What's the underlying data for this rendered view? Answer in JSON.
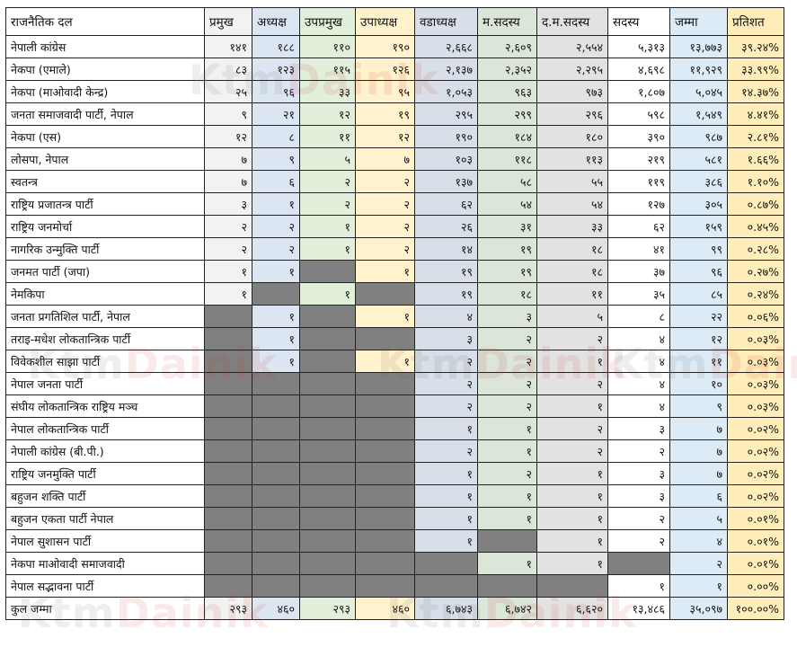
{
  "headers": [
    "राजनैतिक दल",
    "प्रमुख",
    "अध्यक्ष",
    "उपप्रमुख",
    "उपाध्यक्ष",
    "वडाध्यक्ष",
    "म.सदस्य",
    "द.म.सदस्य",
    "सदस्य",
    "जम्मा",
    "प्रतिशत"
  ],
  "rows": [
    {
      "name": "नेपाली कांग्रेस",
      "v": [
        "१४१",
        "१८८",
        "११०",
        "१९०",
        "२,६६८",
        "२,६०९",
        "२,५५४",
        "५,३१३",
        "१३,७७३",
        "३९.२४%"
      ]
    },
    {
      "name": "नेकपा (एमाले)",
      "v": [
        "८३",
        "१२३",
        "११५",
        "१२६",
        "२,१३७",
        "२,३५२",
        "२,२९५",
        "४,६९८",
        "११,९२९",
        "३३.९९%"
      ]
    },
    {
      "name": "नेकपा (माओवादी केन्द्र)",
      "v": [
        "२५",
        "९६",
        "३३",
        "९५",
        "१,०५३",
        "९६३",
        "९७३",
        "१,८०७",
        "५,०४५",
        "१४.३७%"
      ]
    },
    {
      "name": "जनता समाजवादी पार्टी, नेपाल",
      "v": [
        "९",
        "२१",
        "१२",
        "१९",
        "२९५",
        "२९९",
        "२९६",
        "५९८",
        "१,५४९",
        "४.४१%"
      ]
    },
    {
      "name": "नेकपा (एस)",
      "v": [
        "१२",
        "८",
        "११",
        "१२",
        "१९०",
        "१८४",
        "१८०",
        "३९०",
        "९८७",
        "२.८१%"
      ]
    },
    {
      "name": "लोसपा, नेपाल",
      "v": [
        "७",
        "९",
        "५",
        "७",
        "१०३",
        "११८",
        "११३",
        "२१९",
        "५८१",
        "१.६६%"
      ]
    },
    {
      "name": "स्वतन्त्र",
      "v": [
        "७",
        "६",
        "२",
        "२",
        "१३७",
        "५८",
        "५५",
        "११९",
        "३८६",
        "१.१०%"
      ]
    },
    {
      "name": "राष्ट्रिय प्रजातन्त्र पार्टी",
      "v": [
        "३",
        "१",
        "२",
        "२",
        "६२",
        "५४",
        "५४",
        "१२७",
        "३०५",
        "०.८७%"
      ]
    },
    {
      "name": "राष्ट्रिय जनमोर्चा",
      "v": [
        "२",
        "२",
        "१",
        "२",
        "२६",
        "३१",
        "३३",
        "६२",
        "१५९",
        "०.४५%"
      ]
    },
    {
      "name": "नागरिक उन्मुक्ति पार्टी",
      "v": [
        "२",
        "२",
        "१",
        "२",
        "१४",
        "१९",
        "१८",
        "४१",
        "९९",
        "०.२८%"
      ]
    },
    {
      "name": "जनमत पार्टी (जपा)",
      "v": [
        "१",
        "१",
        "",
        "१",
        "१९",
        "१९",
        "१८",
        "३७",
        "९६",
        "०.२७%"
      ]
    },
    {
      "name": "नेमकिपा",
      "v": [
        "१",
        "",
        "१",
        "",
        "१९",
        "१८",
        "११",
        "३५",
        "८५",
        "०.२४%"
      ]
    },
    {
      "name": "जनता प्रगतिशिल पार्टी, नेपाल",
      "v": [
        "",
        "१",
        "",
        "१",
        "४",
        "३",
        "५",
        "८",
        "२२",
        "०.०६%"
      ]
    },
    {
      "name": "तराइ-मधेश लोकतान्त्रिक पार्टी",
      "v": [
        "",
        "१",
        "",
        "",
        "३",
        "२",
        "२",
        "४",
        "१२",
        "०.०३%"
      ]
    },
    {
      "name": "विवेकशील साझा पार्टी",
      "v": [
        "",
        "१",
        "",
        "१",
        "२",
        "२",
        "१",
        "४",
        "११",
        "०.०३%"
      ]
    },
    {
      "name": "नेपाल जनता पार्टी",
      "v": [
        "",
        "",
        "",
        "",
        "२",
        "२",
        "२",
        "४",
        "१०",
        "०.०३%"
      ]
    },
    {
      "name": "संघीय लोकतान्त्रिक राष्ट्रिय मञ्च",
      "v": [
        "",
        "",
        "",
        "",
        "२",
        "२",
        "१",
        "४",
        "९",
        "०.०३%"
      ]
    },
    {
      "name": "नेपाल लोकतान्त्रिक पार्टी",
      "v": [
        "",
        "",
        "",
        "",
        "१",
        "१",
        "२",
        "३",
        "७",
        "०.०२%"
      ]
    },
    {
      "name": "नेपाली कांग्रेस (बी.पी.)",
      "v": [
        "",
        "",
        "",
        "",
        "२",
        "१",
        "२",
        "२",
        "७",
        "०.०२%"
      ]
    },
    {
      "name": "राष्ट्रिय जनमुक्ति पार्टी",
      "v": [
        "",
        "",
        "",
        "",
        "१",
        "२",
        "१",
        "३",
        "७",
        "०.०२%"
      ]
    },
    {
      "name": "बहुजन शक्ति पार्टी",
      "v": [
        "",
        "",
        "",
        "",
        "१",
        "१",
        "१",
        "३",
        "६",
        "०.०२%"
      ]
    },
    {
      "name": "बहुजन एकता पार्टी नेपाल",
      "v": [
        "",
        "",
        "",
        "",
        "१",
        "१",
        "१",
        "२",
        "५",
        "०.०१%"
      ]
    },
    {
      "name": "नेपाल सुशासन पार्टी",
      "v": [
        "",
        "",
        "",
        "",
        "१",
        "",
        "१",
        "२",
        "४",
        "०.०१%"
      ]
    },
    {
      "name": "नेकपा माओवादी समाजवादी",
      "v": [
        "",
        "",
        "",
        "",
        "",
        "१",
        "१",
        "",
        "२",
        "०.०१%"
      ]
    },
    {
      "name": "नेपाल सद्भावना पार्टी",
      "v": [
        "",
        "",
        "",
        "",
        "",
        "",
        "",
        "१",
        "१",
        "०.००%"
      ]
    }
  ],
  "total": {
    "name": "कुल जम्मा",
    "v": [
      "२९३",
      "४६०",
      "२९३",
      "४६०",
      "६,७४३",
      "६,७४२",
      "६,६२०",
      "१३,४८६",
      "३५,०९७",
      "१००.००%"
    ]
  },
  "watermark": {
    "brand_a": "Ktm",
    "brand_b": "Dainik"
  },
  "colors": {
    "empty": "#808080",
    "col_pramukh": "#f2f2f2",
    "col_adhyaksha": "#dce6f2",
    "col_upapramukh": "#e2efda",
    "col_upadhyaksha": "#fff2cc",
    "col_wadadhyaksha": "#d9dfe8",
    "col_masadasya": "#dbe5d8",
    "col_damasadasya": "#e2e2e2",
    "col_jamma": "#ddebf7",
    "col_pratishat": "#ffeeba"
  }
}
